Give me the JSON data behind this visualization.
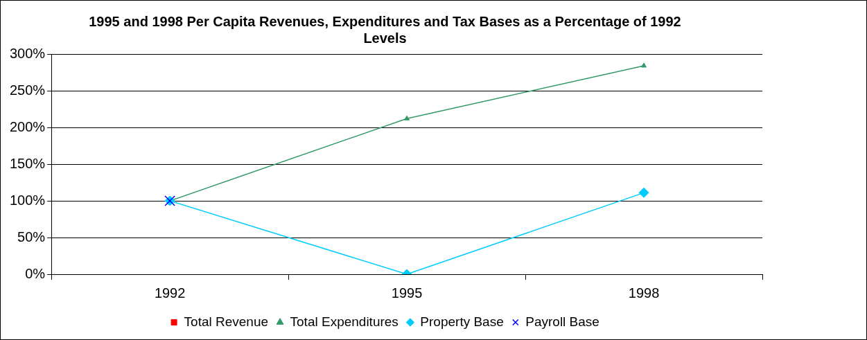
{
  "chart_data": {
    "type": "line",
    "title": "1995 and 1998 Per Capita Revenues, Expenditures and Tax Bases as a Percentage of 1992 Levels",
    "categories": [
      "1992",
      "1995",
      "1998"
    ],
    "series": [
      {
        "name": "Total Revenue",
        "color": "#ff0000",
        "marker": "square",
        "values": [
          null,
          null,
          null
        ]
      },
      {
        "name": "Total Expenditures",
        "color": "#339966",
        "marker": "triangle",
        "values": [
          100,
          212,
          284
        ]
      },
      {
        "name": "Property Base",
        "color": "#00ccff",
        "marker": "diamond",
        "values": [
          100,
          0,
          111
        ]
      },
      {
        "name": "Payroll Base",
        "color": "#0000ff",
        "marker": "cross",
        "values": [
          100,
          null,
          null
        ]
      }
    ],
    "ylim": [
      0,
      300
    ],
    "yticks": [
      {
        "value": 0,
        "label": "0%"
      },
      {
        "value": 50,
        "label": "50%"
      },
      {
        "value": 100,
        "label": "100%"
      },
      {
        "value": 150,
        "label": "150%"
      },
      {
        "value": 200,
        "label": "200%"
      },
      {
        "value": 250,
        "label": "250%"
      },
      {
        "value": 300,
        "label": "300%"
      }
    ],
    "grid": "y",
    "legend": "bottom"
  }
}
